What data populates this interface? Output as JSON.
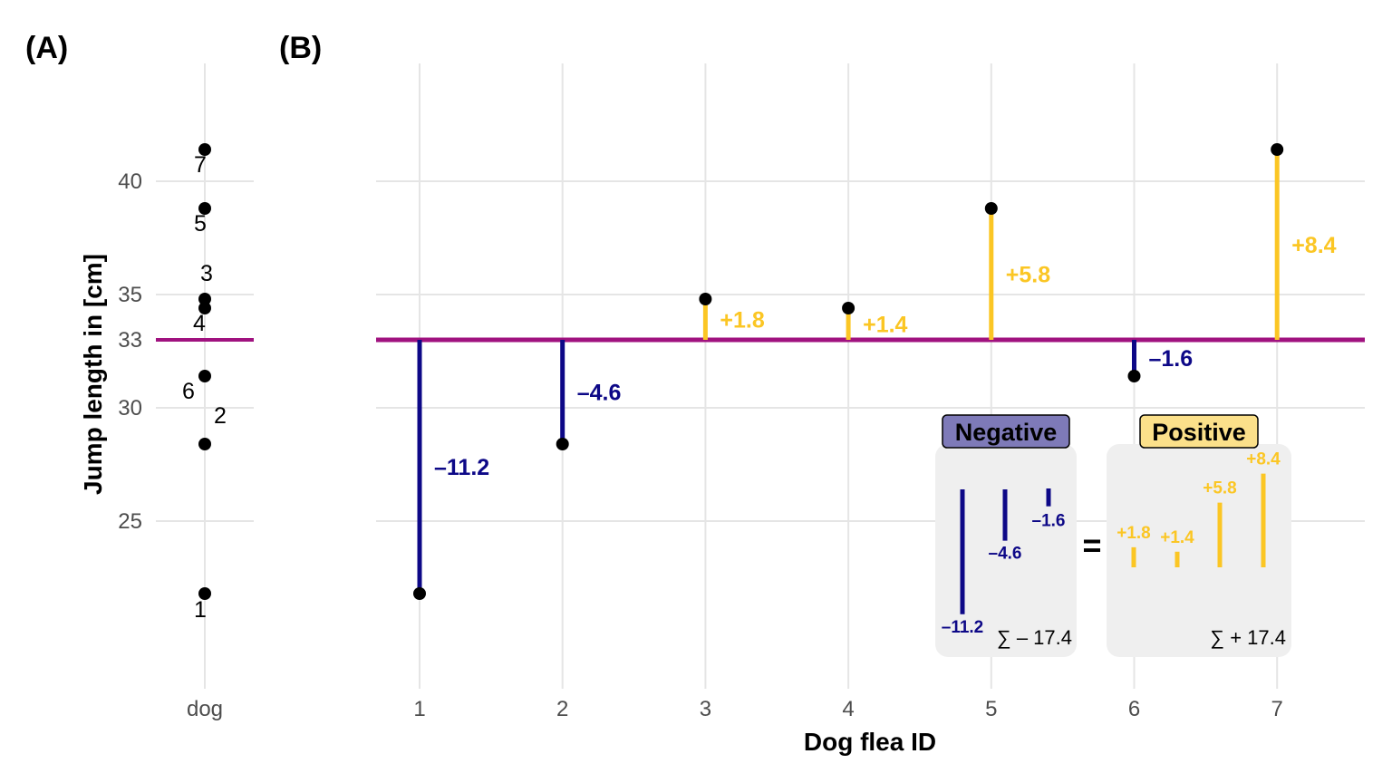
{
  "chart_data": [
    {
      "panel_label": "(A)",
      "type": "scatter",
      "categories": [
        "dog"
      ],
      "ylabel": "Jump length in [cm]",
      "xlabel": "",
      "y_ticks": [
        25,
        30,
        33,
        35,
        40
      ],
      "ylim": [
        18,
        45
      ],
      "grid": true,
      "mean_line": 33,
      "points": [
        {
          "id": "1",
          "y": 21.8
        },
        {
          "id": "2",
          "y": 28.4
        },
        {
          "id": "3",
          "y": 34.8
        },
        {
          "id": "4",
          "y": 34.4
        },
        {
          "id": "5",
          "y": 38.8
        },
        {
          "id": "6",
          "y": 31.4
        },
        {
          "id": "7",
          "y": 41.4
        }
      ]
    },
    {
      "panel_label": "(B)",
      "type": "scatter",
      "xlabel": "Dog flea ID",
      "ylabel": "",
      "x": [
        1,
        2,
        3,
        4,
        5,
        6,
        7
      ],
      "y": [
        21.8,
        28.4,
        34.8,
        34.4,
        38.8,
        31.4,
        41.4
      ],
      "x_ticks": [
        "1",
        "2",
        "3",
        "4",
        "5",
        "6",
        "7"
      ],
      "mean_line": 33,
      "residual_labels": [
        "–11.2",
        "–4.6",
        "+1.8",
        "+1.4",
        "+5.8",
        "–1.6",
        "+8.4"
      ],
      "grid": true,
      "inset": {
        "negative": {
          "title": "Negative",
          "values": [
            -11.2,
            -4.6,
            -1.6
          ],
          "labels": [
            "–11.2",
            "–4.6",
            "–1.6"
          ],
          "sum_label": "∑ – 17.4"
        },
        "equals": "=",
        "positive": {
          "title": "Positive",
          "values": [
            1.8,
            1.4,
            5.8,
            8.4
          ],
          "labels": [
            "+1.8",
            "+1.4",
            "+5.8",
            "+8.4"
          ],
          "sum_label": "∑ + 17.4"
        }
      }
    }
  ],
  "colors": {
    "negative": "#0d0887",
    "positive": "#fbc624",
    "mean": "#a0127f",
    "negative_badge": "#7e7ab8",
    "positive_badge": "#fbe08a",
    "inset_bg": "#efefef",
    "point": "#000000"
  }
}
